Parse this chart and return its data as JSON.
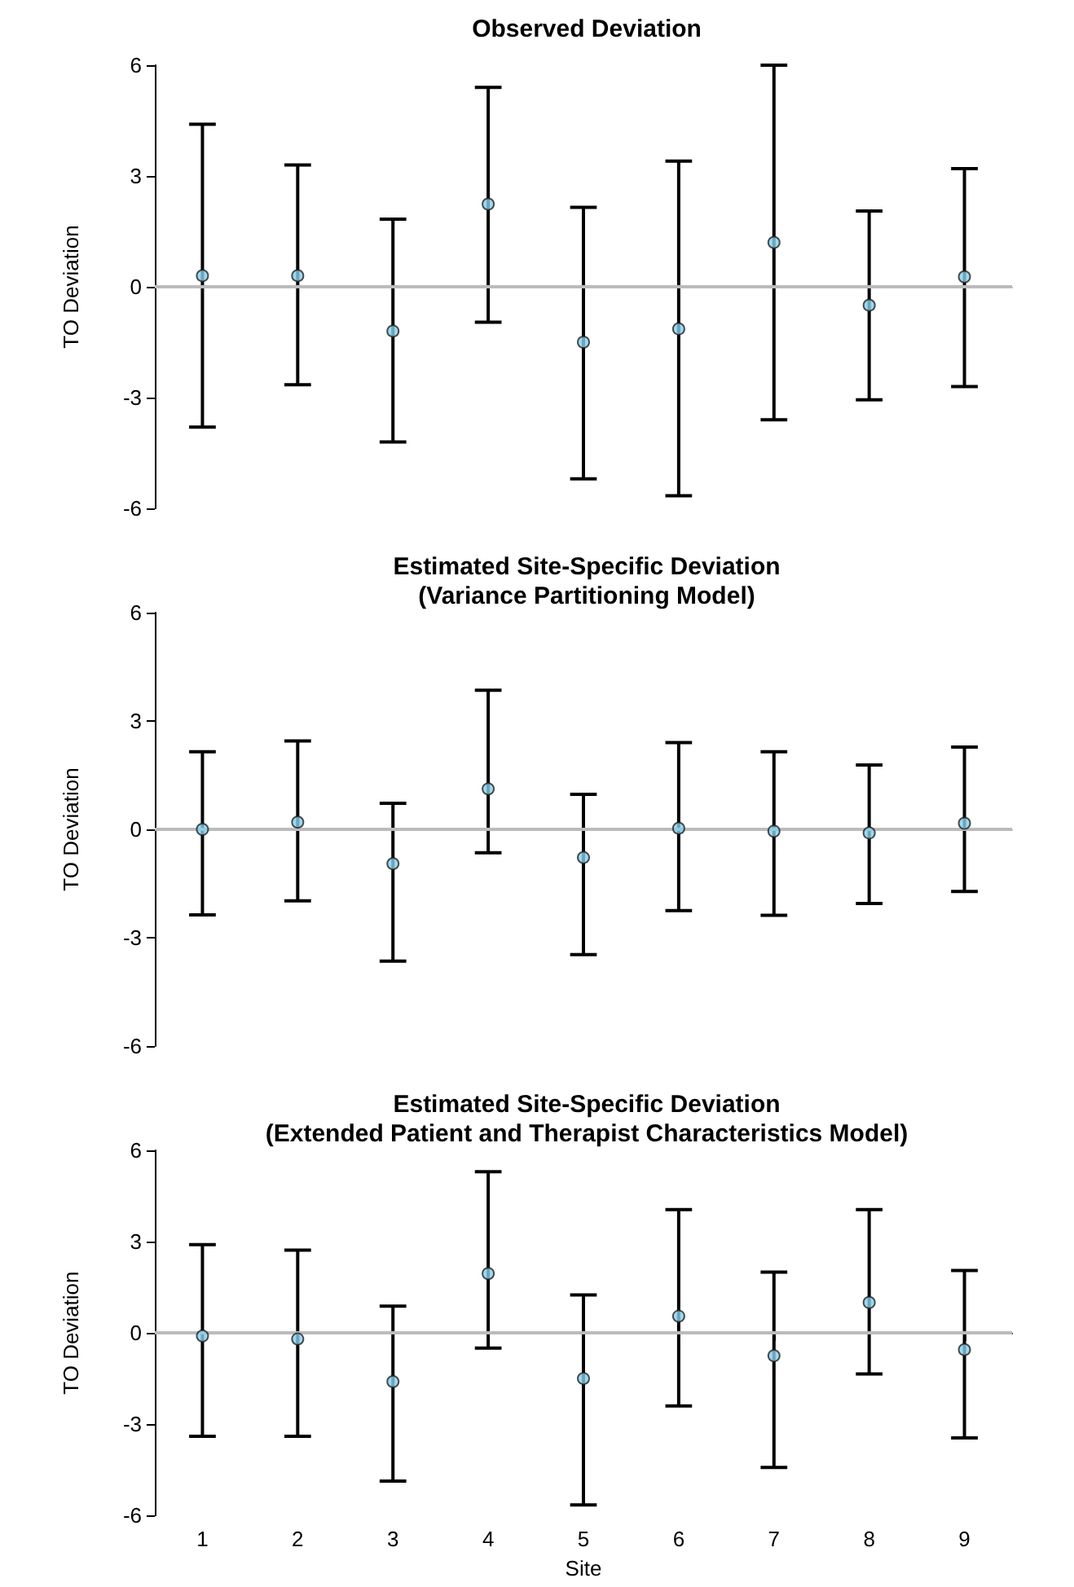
{
  "chart_data": [
    {
      "type": "scatter",
      "title": "Observed Deviation",
      "ylabel": "TO Deviation",
      "categories": [
        "1",
        "2",
        "3",
        "4",
        "5",
        "6",
        "7",
        "8",
        "9"
      ],
      "series": [
        {
          "color": "#87ceeb",
          "values": [
            0.3,
            0.3,
            -1.2,
            2.24,
            -1.5,
            -1.14,
            1.2,
            -0.5,
            0.27
          ],
          "errors": [
            [
              -3.8,
              4.4
            ],
            [
              -2.65,
              3.3
            ],
            [
              -4.2,
              1.83
            ],
            [
              -0.96,
              5.4
            ],
            [
              -5.2,
              2.15
            ],
            [
              -5.66,
              3.4
            ],
            [
              -3.6,
              6.0
            ],
            [
              -3.06,
              2.05
            ],
            [
              -2.7,
              3.2
            ]
          ]
        }
      ],
      "ylim": [
        -6,
        6
      ],
      "yticks": [
        -6,
        -3,
        0,
        3,
        6
      ],
      "ref_lines": [
        {
          "axis": "y",
          "value": 0,
          "color": "#bbbbbb"
        }
      ],
      "marker": "circle",
      "grid": false,
      "tick_labels": "y"
    },
    {
      "type": "scatter",
      "title": "Estimated Site-Specific Deviation\n(Variance Partitioning Model)",
      "ylabel": "TO Deviation",
      "categories": [
        "1",
        "2",
        "3",
        "4",
        "5",
        "6",
        "7",
        "8",
        "9"
      ],
      "series": [
        {
          "color": "#87ceeb",
          "values": [
            0,
            0.2,
            -0.95,
            1.12,
            -0.78,
            0.03,
            -0.05,
            -0.1,
            0.17
          ],
          "errors": [
            [
              -2.37,
              2.15
            ],
            [
              -1.98,
              2.45
            ],
            [
              -3.65,
              0.72
            ],
            [
              -0.65,
              3.85
            ],
            [
              -3.47,
              0.97
            ],
            [
              -2.25,
              2.4
            ],
            [
              -2.38,
              2.15
            ],
            [
              -2.05,
              1.78
            ],
            [
              -1.72,
              2.28
            ]
          ]
        }
      ],
      "ylim": [
        -6,
        6
      ],
      "yticks": [
        -6,
        -3,
        0,
        3,
        6
      ],
      "ref_lines": [
        {
          "axis": "y",
          "value": 0,
          "color": "#bbbbbb"
        }
      ],
      "marker": "circle",
      "grid": false,
      "tick_labels": "y"
    },
    {
      "type": "scatter",
      "title": "Estimated Site-Specific Deviation\n(Extended Patient and Therapist Characteristics Model)",
      "ylabel": "TO Deviation",
      "xlabel": "Site",
      "categories": [
        "1",
        "2",
        "3",
        "4",
        "5",
        "6",
        "7",
        "8",
        "9"
      ],
      "series": [
        {
          "color": "#87ceeb",
          "values": [
            -0.1,
            -0.2,
            -1.6,
            1.95,
            -1.5,
            0.55,
            -0.75,
            1.0,
            -0.55
          ],
          "errors": [
            [
              -3.4,
              2.9
            ],
            [
              -3.4,
              2.72
            ],
            [
              -4.87,
              0.88
            ],
            [
              -0.5,
              5.3
            ],
            [
              -5.65,
              1.25
            ],
            [
              -2.4,
              4.05
            ],
            [
              -4.42,
              2.0
            ],
            [
              -1.35,
              4.05
            ],
            [
              -3.45,
              2.05
            ]
          ]
        }
      ],
      "ylim": [
        -6,
        6
      ],
      "yticks": [
        -6,
        -3,
        0,
        3,
        6
      ],
      "ref_lines": [
        {
          "axis": "y",
          "value": 0,
          "color": "#bbbbbb"
        }
      ],
      "marker": "circle",
      "grid": false
    }
  ]
}
